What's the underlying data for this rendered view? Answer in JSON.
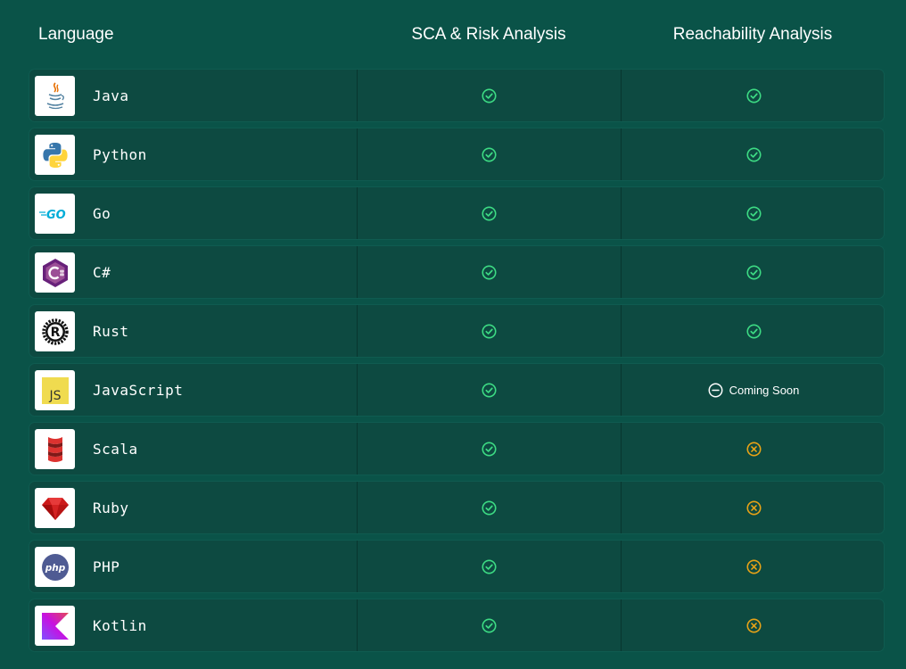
{
  "header": {
    "language": "Language",
    "sca": "SCA & Risk Analysis",
    "reachability": "Reachability Analysis"
  },
  "colors": {
    "background": "#0a5348",
    "row": "#0d4a41",
    "supported": "#3ddc84",
    "unsupported": "#e8a317",
    "coming_soon": "#ffffff"
  },
  "rows": [
    {
      "language": "Java",
      "logo": "java-logo",
      "sca": "supported",
      "reachability": "supported"
    },
    {
      "language": "Python",
      "logo": "python-logo",
      "sca": "supported",
      "reachability": "supported"
    },
    {
      "language": "Go",
      "logo": "go-logo",
      "logo_text": "GO",
      "sca": "supported",
      "reachability": "supported"
    },
    {
      "language": "C#",
      "logo": "csharp-logo",
      "sca": "supported",
      "reachability": "supported"
    },
    {
      "language": "Rust",
      "logo": "rust-logo",
      "logo_text": "R",
      "sca": "supported",
      "reachability": "supported"
    },
    {
      "language": "JavaScript",
      "logo": "javascript-logo",
      "logo_text": "JS",
      "sca": "supported",
      "reachability": "coming-soon",
      "reachability_text": "Coming Soon"
    },
    {
      "language": "Scala",
      "logo": "scala-logo",
      "sca": "supported",
      "reachability": "unsupported"
    },
    {
      "language": "Ruby",
      "logo": "ruby-logo",
      "sca": "supported",
      "reachability": "unsupported"
    },
    {
      "language": "PHP",
      "logo": "php-logo",
      "logo_text": "php",
      "sca": "supported",
      "reachability": "unsupported"
    },
    {
      "language": "Kotlin",
      "logo": "kotlin-logo",
      "sca": "supported",
      "reachability": "unsupported"
    }
  ]
}
